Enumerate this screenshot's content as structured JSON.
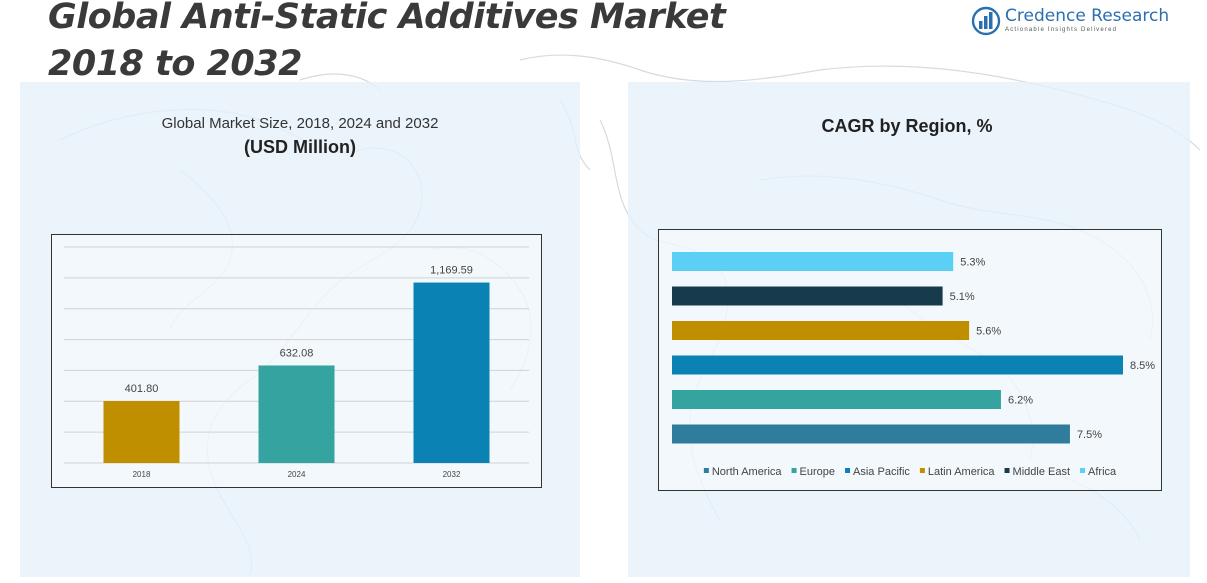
{
  "header": {
    "title_line1": "Global Anti-Static Additives Market",
    "title_line2": "2018 to 2032"
  },
  "logo": {
    "name": "Credence Research",
    "tagline": "Actionable Insights Delivered",
    "icon": "bar-chart-logo-icon"
  },
  "left_panel": {
    "subtitle": "Global Market Size, 2018, 2024 and 2032",
    "unit": "(USD Million)"
  },
  "right_panel": {
    "title": "CAGR by Region, %"
  },
  "colors": {
    "gold": "#c08f00",
    "teal": "#35a3a0",
    "blue": "#0a82b4",
    "steel": "#2f7c9d",
    "navy": "#173b4c",
    "sky": "#5ccff5",
    "panel": "#e6f1fa"
  },
  "chart_data": [
    {
      "type": "bar",
      "categories": [
        "2018",
        "2024",
        "2032"
      ],
      "values": [
        401.8,
        632.08,
        1169.59
      ],
      "value_labels": [
        "401.80",
        "632.08",
        "1,169.59"
      ],
      "colors": [
        "#c08f00",
        "#35a3a0",
        "#0a82b4"
      ],
      "ylim": [
        0,
        1400
      ],
      "grid": true
    },
    {
      "type": "bar",
      "orientation": "horizontal",
      "categories": [
        "Africa",
        "Middle East",
        "Latin America",
        "Asia Pacific",
        "Europe",
        "North America"
      ],
      "values": [
        5.3,
        5.1,
        5.6,
        8.5,
        6.2,
        7.5
      ],
      "value_labels": [
        "5.3%",
        "5.1%",
        "5.6%",
        "8.5%",
        "6.2%",
        "7.5%"
      ],
      "colors": [
        "#5ccff5",
        "#173b4c",
        "#c08f00",
        "#0a82b4",
        "#35a3a0",
        "#2f7c9d"
      ],
      "legend": [
        {
          "name": "North America",
          "color": "#2f7c9d"
        },
        {
          "name": "Europe",
          "color": "#35a3a0"
        },
        {
          "name": "Asia Pacific",
          "color": "#0a82b4"
        },
        {
          "name": "Latin America",
          "color": "#c08f00"
        },
        {
          "name": "Middle East",
          "color": "#173b4c"
        },
        {
          "name": "Africa",
          "color": "#5ccff5"
        }
      ],
      "legend_position": "bottom",
      "xlim": [
        0,
        8.5
      ],
      "grid": false
    }
  ]
}
